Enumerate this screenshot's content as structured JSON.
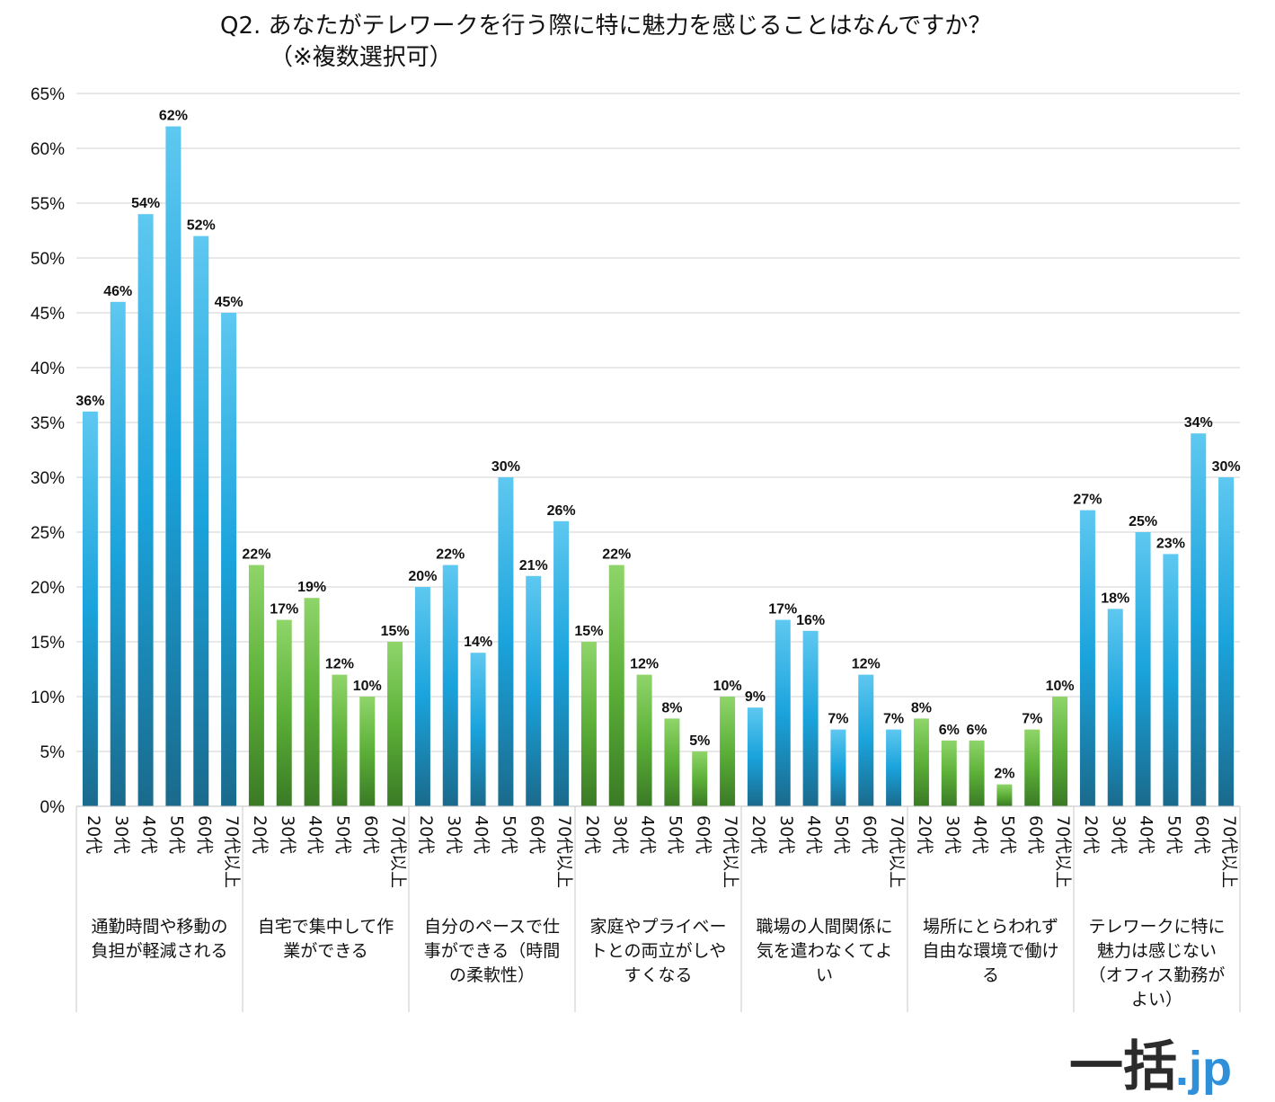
{
  "chart_data": {
    "type": "bar",
    "title": "Q2. あなたがテレワークを行う際に特に魅力を感じることはなんですか？",
    "subtitle": "（※複数選択可）",
    "ylim": [
      0,
      65
    ],
    "ytick_step": 5,
    "yticks": [
      "0%",
      "5%",
      "10%",
      "15%",
      "20%",
      "25%",
      "30%",
      "35%",
      "40%",
      "45%",
      "50%",
      "55%",
      "60%",
      "65%"
    ],
    "grid": true,
    "legend": "none",
    "age_labels": [
      "20代",
      "30代",
      "40代",
      "50代",
      "60代",
      "70代以上"
    ],
    "groups": [
      {
        "label_lines": [
          "通勤時間や移動の",
          "負担が軽減される"
        ],
        "color": "blue",
        "values": [
          36,
          46,
          54,
          62,
          52,
          45
        ],
        "labels": [
          "36%",
          "46%",
          "54%",
          "62%",
          "52%",
          "45%"
        ]
      },
      {
        "label_lines": [
          "自宅で集中して作",
          "業ができる"
        ],
        "color": "green",
        "values": [
          22,
          17,
          19,
          12,
          10,
          15
        ],
        "labels": [
          "22%",
          "17%",
          "19%",
          "12%",
          "10%",
          "15%"
        ]
      },
      {
        "label_lines": [
          "自分のペースで仕",
          "事ができる（時間",
          "の柔軟性）"
        ],
        "color": "blue",
        "values": [
          20,
          22,
          14,
          30,
          21,
          26
        ],
        "labels": [
          "20%",
          "22%",
          "14%",
          "30%",
          "21%",
          "26%"
        ]
      },
      {
        "label_lines": [
          "家庭やプライベー",
          "トとの両立がしや",
          "すくなる"
        ],
        "color": "green",
        "values": [
          15,
          22,
          12,
          8,
          5,
          10
        ],
        "labels": [
          "15%",
          "22%",
          "12%",
          "8%",
          "5%",
          "10%"
        ]
      },
      {
        "label_lines": [
          "職場の人間関係に",
          "気を遣わなくてよ",
          "い"
        ],
        "color": "blue",
        "values": [
          9,
          17,
          16,
          7,
          12,
          7
        ],
        "labels": [
          "9%",
          "17%",
          "16%",
          "7%",
          "12%",
          "7%"
        ]
      },
      {
        "label_lines": [
          "場所にとらわれず",
          "自由な環境で働け",
          "る"
        ],
        "color": "green",
        "values": [
          8,
          6,
          6,
          2,
          7,
          10
        ],
        "labels": [
          "8%",
          "6%",
          "6%",
          "2%",
          "7%",
          "10%"
        ]
      },
      {
        "label_lines": [
          "テレワークに特に",
          "魅力は感じない",
          "（オフィス勤務が",
          "よい）"
        ],
        "color": "blue",
        "values": [
          27,
          18,
          25,
          23,
          34,
          30
        ],
        "labels": [
          "27%",
          "18%",
          "25%",
          "23%",
          "34%",
          "30%"
        ]
      }
    ],
    "colors": {
      "blue_top": "#5ec8f0",
      "blue_mid": "#1aa3dc",
      "blue_bottom": "#1a6a8c",
      "green_top": "#8fd56a",
      "green_mid": "#5cb038",
      "green_bottom": "#3a7a25",
      "grid": "#d0d0d0"
    }
  },
  "logo": {
    "text_main": "一括",
    "text_suffix": ".jp",
    "main_color": "#2b2b2b",
    "suffix_color": "#2f8fd8"
  }
}
